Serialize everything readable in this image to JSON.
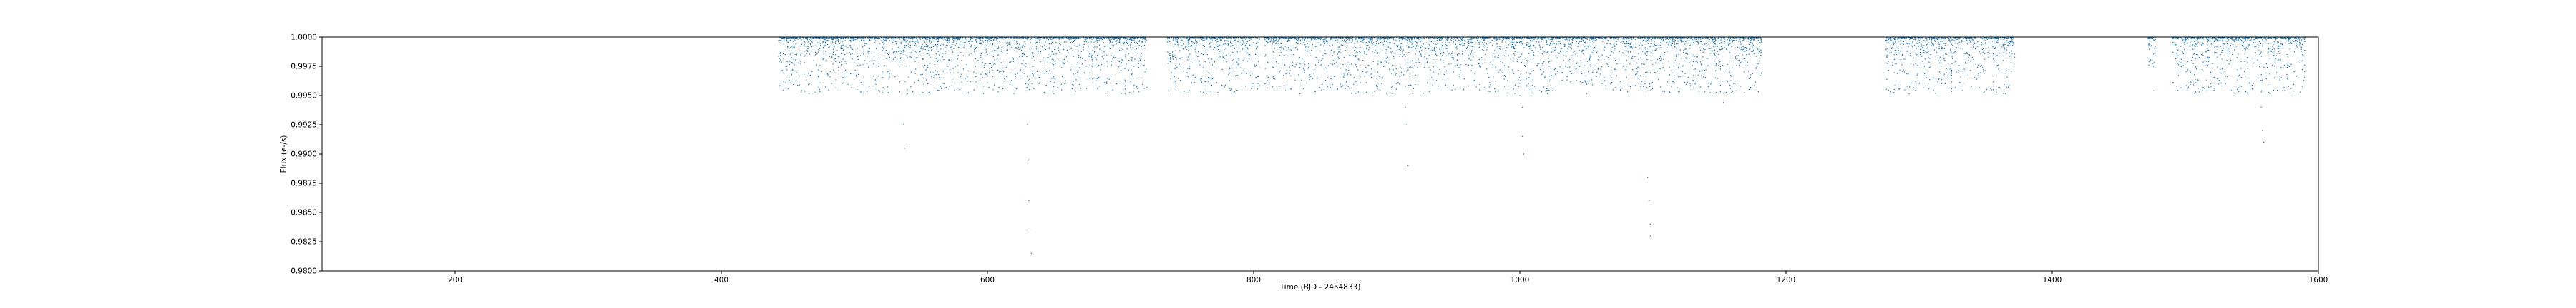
{
  "chart_data": {
    "type": "scatter",
    "title": "",
    "xlabel": "Time (BJD - 2454833)",
    "ylabel": "Flux (e-/s)",
    "xlim": [
      100,
      1600
    ],
    "ylim": [
      0.98,
      1.0
    ],
    "x_ticks": [
      200,
      400,
      600,
      800,
      1000,
      1200,
      1400,
      1600
    ],
    "x_tick_labels": [
      "200",
      "400",
      "600",
      "800",
      "1000",
      "1200",
      "1400",
      "1600"
    ],
    "y_ticks": [
      0.98,
      0.9825,
      0.985,
      0.9875,
      0.99,
      0.9925,
      0.995,
      0.9975,
      1.0
    ],
    "y_tick_labels": [
      "0.9800",
      "0.9825",
      "0.9850",
      "0.9875",
      "0.9900",
      "0.9925",
      "0.9950",
      "0.9975",
      "1.0000"
    ],
    "grid": false,
    "legend": false,
    "marker_color": "#1f77b4",
    "observation_segments": [
      [
        443,
        720
      ],
      [
        735,
        805
      ],
      [
        808,
        1182
      ],
      [
        1275,
        1372
      ],
      [
        1472,
        1478
      ],
      [
        1490,
        1590
      ]
    ],
    "series": [
      {
        "name": "",
        "points": [
          [
            443,
            0.9997
          ],
          [
            448,
            0.9985
          ],
          [
            453,
            0.9992
          ],
          [
            458,
            0.9978
          ],
          [
            463,
            0.9995
          ],
          [
            468,
            0.9988
          ],
          [
            473,
            0.9972
          ],
          [
            478,
            0.9993
          ],
          [
            483,
            0.9983
          ],
          [
            488,
            0.9996
          ],
          [
            493,
            0.9979
          ],
          [
            498,
            0.999
          ],
          [
            503,
            0.9968
          ],
          [
            508,
            0.9994
          ],
          [
            513,
            0.9986
          ],
          [
            518,
            0.9975
          ],
          [
            523,
            0.9997
          ],
          [
            528,
            0.9982
          ],
          [
            533,
            0.9991
          ],
          [
            537,
            0.9925
          ],
          [
            538,
            0.9905
          ],
          [
            543,
            0.9987
          ],
          [
            548,
            0.9995
          ],
          [
            553,
            0.9976
          ],
          [
            558,
            0.9989
          ],
          [
            563,
            0.9996
          ],
          [
            568,
            0.9971
          ],
          [
            573,
            0.9992
          ],
          [
            578,
            0.9984
          ],
          [
            583,
            0.9965
          ],
          [
            588,
            0.9993
          ],
          [
            593,
            0.998
          ],
          [
            598,
            0.9997
          ],
          [
            603,
            0.9974
          ],
          [
            608,
            0.9988
          ],
          [
            613,
            0.9962
          ],
          [
            618,
            0.9991
          ],
          [
            623,
            0.9978
          ],
          [
            629,
            0.9975
          ],
          [
            630,
            0.9925
          ],
          [
            631,
            0.9895
          ],
          [
            631,
            0.986
          ],
          [
            632,
            0.9835
          ],
          [
            633,
            0.9815
          ],
          [
            638,
            0.9986
          ],
          [
            643,
            0.9969
          ],
          [
            648,
            0.9994
          ],
          [
            653,
            0.9981
          ],
          [
            658,
            0.996
          ],
          [
            663,
            0.999
          ],
          [
            668,
            0.9975
          ],
          [
            673,
            0.9996
          ],
          [
            678,
            0.9983
          ],
          [
            683,
            0.9967
          ],
          [
            688,
            0.9992
          ],
          [
            693,
            0.9979
          ],
          [
            698,
            0.9988
          ],
          [
            703,
            0.9995
          ],
          [
            708,
            0.9972
          ],
          [
            713,
            0.9986
          ],
          [
            718,
            0.9993
          ],
          [
            737,
            0.9996
          ],
          [
            742,
            0.9981
          ],
          [
            747,
            0.999
          ],
          [
            752,
            0.9973
          ],
          [
            757,
            0.9994
          ],
          [
            762,
            0.9985
          ],
          [
            767,
            0.9978
          ],
          [
            772,
            0.9995
          ],
          [
            777,
            0.9983
          ],
          [
            782,
            0.9969
          ],
          [
            787,
            0.9991
          ],
          [
            792,
            0.998
          ],
          [
            797,
            0.9993
          ],
          [
            802,
            0.9976
          ],
          [
            810,
            0.9994
          ],
          [
            815,
            0.9982
          ],
          [
            820,
            0.9971
          ],
          [
            825,
            0.9996
          ],
          [
            830,
            0.9985
          ],
          [
            835,
            0.9977
          ],
          [
            840,
            0.9992
          ],
          [
            845,
            0.9969
          ],
          [
            850,
            0.9988
          ],
          [
            855,
            0.9995
          ],
          [
            860,
            0.998
          ],
          [
            865,
            0.9973
          ],
          [
            870,
            0.9991
          ],
          [
            875,
            0.9984
          ],
          [
            880,
            0.9966
          ],
          [
            885,
            0.9993
          ],
          [
            890,
            0.9979
          ],
          [
            895,
            0.9988
          ],
          [
            900,
            0.9996
          ],
          [
            905,
            0.9972
          ],
          [
            910,
            0.9985
          ],
          [
            914,
            0.994
          ],
          [
            915,
            0.9925
          ],
          [
            916,
            0.989
          ],
          [
            920,
            0.9992
          ],
          [
            925,
            0.9978
          ],
          [
            930,
            0.9995
          ],
          [
            935,
            0.997
          ],
          [
            940,
            0.9987
          ],
          [
            945,
            0.9993
          ],
          [
            950,
            0.9981
          ],
          [
            955,
            0.9968
          ],
          [
            960,
            0.999
          ],
          [
            965,
            0.9983
          ],
          [
            970,
            0.9975
          ],
          [
            975,
            0.9994
          ],
          [
            980,
            0.9986
          ],
          [
            985,
            0.9972
          ],
          [
            990,
            0.9991
          ],
          [
            995,
            0.9979
          ],
          [
            1000,
            0.995
          ],
          [
            1002,
            0.994
          ],
          [
            1002,
            0.9915
          ],
          [
            1003,
            0.99
          ],
          [
            1008,
            0.9993
          ],
          [
            1013,
            0.9976
          ],
          [
            1018,
            0.9988
          ],
          [
            1023,
            0.9995
          ],
          [
            1028,
            0.9969
          ],
          [
            1033,
            0.9984
          ],
          [
            1038,
            0.9991
          ],
          [
            1043,
            0.9978
          ],
          [
            1048,
            0.9996
          ],
          [
            1053,
            0.9982
          ],
          [
            1058,
            0.997
          ],
          [
            1063,
            0.9989
          ],
          [
            1068,
            0.9994
          ],
          [
            1073,
            0.9977
          ],
          [
            1078,
            0.9986
          ],
          [
            1083,
            0.9992
          ],
          [
            1088,
            0.9973
          ],
          [
            1094,
            0.996
          ],
          [
            1096,
            0.988
          ],
          [
            1097,
            0.986
          ],
          [
            1098,
            0.984
          ],
          [
            1098,
            0.983
          ],
          [
            1103,
            0.999
          ],
          [
            1108,
            0.9981
          ],
          [
            1113,
            0.9995
          ],
          [
            1118,
            0.9971
          ],
          [
            1123,
            0.9987
          ],
          [
            1128,
            0.9993
          ],
          [
            1133,
            0.9979
          ],
          [
            1138,
            0.9966
          ],
          [
            1143,
            0.999
          ],
          [
            1148,
            0.9983
          ],
          [
            1153,
            0.9944
          ],
          [
            1158,
            0.9994
          ],
          [
            1163,
            0.9976
          ],
          [
            1168,
            0.9988
          ],
          [
            1173,
            0.9992
          ],
          [
            1178,
            0.9974
          ],
          [
            1277,
            0.9995
          ],
          [
            1280,
            0.9978
          ],
          [
            1284,
            0.9988
          ],
          [
            1289,
            0.997
          ],
          [
            1294,
            0.9993
          ],
          [
            1299,
            0.9984
          ],
          [
            1304,
            0.9975
          ],
          [
            1309,
            0.9996
          ],
          [
            1314,
            0.9982
          ],
          [
            1319,
            0.999
          ],
          [
            1324,
            0.9973
          ],
          [
            1329,
            0.9994
          ],
          [
            1334,
            0.9986
          ],
          [
            1339,
            0.9979
          ],
          [
            1344,
            0.9992
          ],
          [
            1349,
            0.9981
          ],
          [
            1354,
            0.9995
          ],
          [
            1359,
            0.9976
          ],
          [
            1364,
            0.9988
          ],
          [
            1369,
            0.9993
          ],
          [
            1473,
            0.9994
          ],
          [
            1474,
            0.998
          ],
          [
            1476,
            0.9975
          ],
          [
            1477,
            0.999
          ],
          [
            1492,
            0.9995
          ],
          [
            1497,
            0.9981
          ],
          [
            1502,
            0.9972
          ],
          [
            1507,
            0.9993
          ],
          [
            1512,
            0.9985
          ],
          [
            1517,
            0.9976
          ],
          [
            1522,
            0.9991
          ],
          [
            1527,
            0.9969
          ],
          [
            1532,
            0.9988
          ],
          [
            1537,
            0.9996
          ],
          [
            1542,
            0.9979
          ],
          [
            1547,
            0.9973
          ],
          [
            1552,
            0.9992
          ],
          [
            1557,
            0.994
          ],
          [
            1558,
            0.992
          ],
          [
            1559,
            0.991
          ],
          [
            1562,
            0.9987
          ],
          [
            1567,
            0.9975
          ],
          [
            1572,
            0.9994
          ],
          [
            1577,
            0.9983
          ],
          [
            1583,
            0.999
          ],
          [
            1588,
            0.9985
          ]
        ]
      }
    ]
  }
}
